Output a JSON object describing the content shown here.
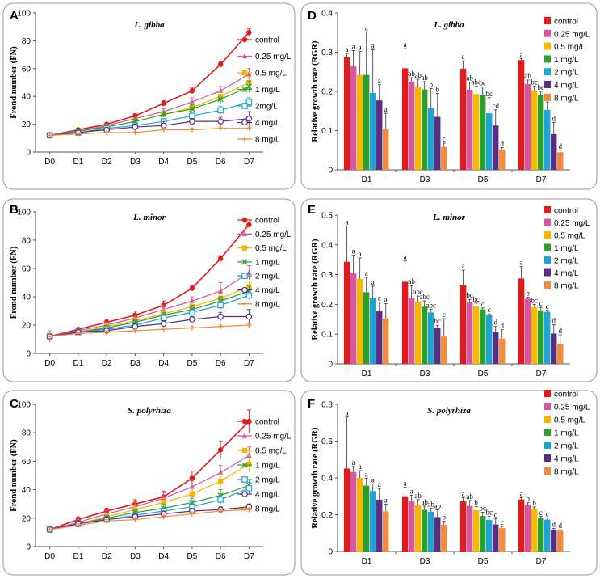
{
  "figure": {
    "legend_labels_line": [
      "control",
      "0.25 mg/L",
      "0.5 mg/L",
      "1 mg/L",
      "2mg/L",
      "4 mg/L",
      "8 mg/L"
    ],
    "legend_labels_line_alt": [
      "control",
      "0.25 mg/L",
      "0.5 mg/L",
      "1 mg/L",
      "2 mg/L",
      "4 mg/L",
      "8 mg/L"
    ],
    "colors": [
      "#e31a1c",
      "#d9559f",
      "#f5b800",
      "#2ca02c",
      "#1fa2d6",
      "#5a2d82",
      "#f28b3c"
    ],
    "markers": [
      "circle",
      "triangle",
      "square",
      "x",
      "open-square",
      "open-circle",
      "plus"
    ]
  },
  "chart_data": [
    {
      "panel": "A",
      "type": "line",
      "title": "L. gibba",
      "xlabel": "",
      "ylabel": "Frond number (FN)",
      "categories": [
        "D0",
        "D1",
        "D2",
        "D3",
        "D4",
        "D5",
        "D6",
        "D7"
      ],
      "ylim": [
        0,
        100
      ],
      "yticks": [
        0,
        20,
        40,
        60,
        80,
        100
      ],
      "series": [
        {
          "name": "control",
          "values": [
            12,
            16,
            20,
            26,
            35,
            44,
            63,
            86
          ],
          "errors": [
            0,
            1,
            1,
            1.5,
            2,
            2,
            2,
            2.5
          ]
        },
        {
          "name": "0.25 mg/L",
          "values": [
            12,
            15,
            19,
            24,
            29,
            36,
            44,
            56
          ],
          "errors": [
            0,
            1,
            1,
            2,
            2,
            3,
            3,
            4
          ]
        },
        {
          "name": "0.5 mg/L",
          "values": [
            12,
            15,
            18,
            22,
            27,
            32,
            40,
            50
          ],
          "errors": [
            0,
            1,
            1,
            2,
            2,
            3,
            3,
            4
          ]
        },
        {
          "name": "1 mg/L",
          "values": [
            12,
            15,
            18,
            22,
            27,
            31,
            38,
            47
          ],
          "errors": [
            0,
            1,
            1,
            2,
            2,
            3,
            3,
            4
          ]
        },
        {
          "name": "2mg/L",
          "values": [
            12,
            14,
            17,
            19,
            22,
            26,
            30,
            36
          ],
          "errors": [
            0,
            1,
            1,
            1.5,
            2,
            2,
            3,
            3
          ]
        },
        {
          "name": "4 mg/L",
          "values": [
            12,
            14,
            16,
            18,
            19,
            22,
            22,
            24
          ],
          "errors": [
            0,
            1,
            1,
            2,
            3,
            2,
            3,
            5
          ]
        },
        {
          "name": "8 mg/L",
          "values": [
            12,
            13,
            14,
            14,
            16,
            16,
            17,
            17
          ],
          "errors": [
            0,
            0.5,
            0.5,
            1,
            1,
            1,
            1,
            1
          ]
        }
      ]
    },
    {
      "panel": "B",
      "type": "line",
      "title": "L. minor",
      "xlabel": "",
      "ylabel": "Frond number (FN)",
      "categories": [
        "D0",
        "D1",
        "D2",
        "D3",
        "D4",
        "D5",
        "D6",
        "D7"
      ],
      "ylim": [
        0,
        100
      ],
      "yticks": [
        0,
        20,
        40,
        60,
        80,
        100
      ],
      "series": [
        {
          "name": "control",
          "values": [
            12,
            17,
            22,
            27,
            34,
            46,
            67,
            91
          ],
          "errors": [
            4,
            1,
            2,
            3,
            3,
            2,
            2,
            2
          ]
        },
        {
          "name": "0.25 mg/L",
          "values": [
            12,
            16,
            20,
            25,
            31,
            37,
            44,
            57
          ],
          "errors": [
            4,
            1,
            2,
            2,
            3,
            3,
            6,
            5
          ]
        },
        {
          "name": "0.5 mg/L",
          "values": [
            12,
            15,
            19,
            23,
            28,
            33,
            39,
            47
          ],
          "errors": [
            4,
            1,
            2,
            2,
            3,
            3,
            3,
            4
          ]
        },
        {
          "name": "1 mg/L",
          "values": [
            12,
            15,
            18,
            22,
            27,
            31,
            37,
            44
          ],
          "errors": [
            4,
            1,
            2,
            2,
            2,
            3,
            3,
            4
          ]
        },
        {
          "name": "2 mg/L",
          "values": [
            12,
            15,
            17,
            20,
            25,
            29,
            34,
            41
          ],
          "errors": [
            4,
            1,
            1,
            2,
            2,
            3,
            3,
            3
          ]
        },
        {
          "name": "4 mg/L",
          "values": [
            12,
            15,
            16,
            19,
            21,
            24,
            26,
            26
          ],
          "errors": [
            4,
            1,
            1,
            2,
            2,
            2,
            3,
            5
          ]
        },
        {
          "name": "8 mg/L",
          "values": [
            12,
            14,
            15,
            16,
            17,
            18,
            19,
            20
          ],
          "errors": [
            4,
            0.5,
            1,
            1,
            1,
            1,
            1,
            1
          ]
        }
      ]
    },
    {
      "panel": "C",
      "type": "line",
      "title": "S. polyrhiza",
      "xlabel": "",
      "ylabel": "Frond number (FN)",
      "categories": [
        "D0",
        "D1",
        "D2",
        "D3",
        "D4",
        "D5",
        "D6",
        "D7"
      ],
      "ylim": [
        0,
        100
      ],
      "yticks": [
        0,
        20,
        40,
        60,
        80,
        100
      ],
      "series": [
        {
          "name": "control",
          "values": [
            12,
            19,
            25,
            30,
            35,
            48,
            68,
            88
          ],
          "errors": [
            0,
            2,
            2,
            3,
            4,
            5,
            6,
            8
          ]
        },
        {
          "name": "0.25 mg/L",
          "values": [
            12,
            17,
            23,
            28,
            34,
            42,
            52,
            64
          ],
          "errors": [
            0,
            2,
            2,
            3,
            4,
            4,
            5,
            6
          ]
        },
        {
          "name": "0.5 mg/L",
          "values": [
            12,
            16,
            21,
            26,
            31,
            37,
            46,
            58
          ],
          "errors": [
            0,
            2,
            2,
            3,
            3,
            4,
            5,
            6
          ]
        },
        {
          "name": "1 mg/L",
          "values": [
            12,
            16,
            20,
            24,
            27,
            31,
            36,
            43
          ],
          "errors": [
            0,
            2,
            2,
            2,
            3,
            3,
            4,
            4
          ]
        },
        {
          "name": "2 mg/L",
          "values": [
            12,
            16,
            19,
            22,
            25,
            28,
            33,
            41
          ],
          "errors": [
            0,
            2,
            2,
            2,
            3,
            3,
            3,
            4
          ]
        },
        {
          "name": "4 mg/L",
          "values": [
            12,
            16,
            19,
            21,
            23,
            25,
            26,
            28
          ],
          "errors": [
            0,
            2,
            2,
            2,
            2,
            2,
            2,
            2
          ]
        },
        {
          "name": "8 mg/L",
          "values": [
            12,
            15,
            18,
            19,
            21,
            23,
            25,
            26
          ],
          "errors": [
            0,
            1,
            1,
            1,
            1,
            1,
            1,
            1
          ]
        }
      ]
    },
    {
      "panel": "D",
      "type": "bar",
      "title": "L. gibba",
      "xlabel": "",
      "ylabel": "Relative growth rate (RGR)",
      "categories": [
        "D1",
        "D3",
        "D5",
        "D7"
      ],
      "ylim": [
        0,
        0.4
      ],
      "yticks": [
        "0",
        "0.1",
        "0.2",
        "0.3",
        "0.4"
      ],
      "series": [
        {
          "name": "control",
          "values": [
            0.287,
            0.259,
            0.258,
            0.28
          ],
          "errors": [
            0.01,
            0.05,
            0.02,
            0.004
          ],
          "letters": [
            "a",
            "a",
            "a",
            "a"
          ]
        },
        {
          "name": "0.25 mg/L",
          "values": [
            0.264,
            0.225,
            0.204,
            0.219
          ],
          "errors": [
            0.04,
            0.01,
            0.02,
            0.01
          ],
          "letters": [
            "a",
            "ab",
            "ab",
            "ab"
          ]
        },
        {
          "name": "0.5 mg/L",
          "values": [
            0.242,
            0.211,
            0.193,
            0.203
          ],
          "errors": [
            0.06,
            0.02,
            0.02,
            0.01
          ],
          "letters": [
            "a",
            "ab",
            "abc",
            "bc"
          ]
        },
        {
          "name": "1 mg/L",
          "values": [
            0.242,
            0.205,
            0.191,
            0.19
          ],
          "errors": [
            0.11,
            0.02,
            0.02,
            0.01
          ],
          "letters": [
            "a",
            "ab",
            "bc",
            "bc"
          ]
        },
        {
          "name": "2 mg/L",
          "values": [
            0.196,
            0.157,
            0.144,
            0.153
          ],
          "errors": [
            0.11,
            0.05,
            0.04,
            0.02
          ],
          "letters": [
            "a",
            "b",
            "bc",
            "c"
          ]
        },
        {
          "name": "4 mg/L",
          "values": [
            0.177,
            0.135,
            0.113,
            0.091
          ],
          "errors": [
            0.04,
            0.06,
            0.04,
            0.03
          ],
          "letters": [
            "a",
            "b",
            "cd",
            "d"
          ]
        },
        {
          "name": "8 mg/L",
          "values": [
            0.104,
            0.058,
            0.052,
            0.045
          ],
          "errors": [
            0.04,
            0.01,
            0.005,
            0.005
          ],
          "letters": [
            "a",
            "c",
            "d",
            "d"
          ]
        }
      ]
    },
    {
      "panel": "E",
      "type": "bar",
      "title": "L. minor",
      "xlabel": "",
      "ylabel": "Relative growth rate (RGR)",
      "categories": [
        "D1",
        "D3",
        "D5",
        "D7"
      ],
      "ylim": [
        0,
        0.5
      ],
      "yticks": [
        "0",
        "0.1",
        "0.2",
        "0.3",
        "0.4",
        "0.5"
      ],
      "series": [
        {
          "name": "control",
          "values": [
            0.343,
            0.276,
            0.265,
            0.287
          ],
          "errors": [
            0.12,
            0.07,
            0.05,
            0.04
          ],
          "letters": [
            "a",
            "a",
            "a",
            "a"
          ]
        },
        {
          "name": "0.25 mg/L",
          "values": [
            0.305,
            0.223,
            0.207,
            0.219
          ],
          "errors": [
            0.06,
            0.04,
            0.01,
            0.005
          ],
          "letters": [
            "a",
            "ab",
            "bc",
            "b"
          ]
        },
        {
          "name": "0.5 mg/L",
          "values": [
            0.286,
            0.208,
            0.194,
            0.19
          ],
          "errors": [
            0.07,
            0.02,
            0.01,
            0.01
          ],
          "letters": [
            "a",
            "abc",
            "bc",
            "bc"
          ]
        },
        {
          "name": "1 mg/L",
          "values": [
            0.241,
            0.192,
            0.183,
            0.18
          ],
          "errors": [
            0.05,
            0.02,
            0.005,
            0.01
          ],
          "letters": [
            "a",
            "abc",
            "c",
            "c"
          ]
        },
        {
          "name": "2 mg/L",
          "values": [
            0.221,
            0.173,
            0.163,
            0.175
          ],
          "errors": [
            0.04,
            0.01,
            0.005,
            0.005
          ],
          "letters": [
            "a",
            "abc",
            "c",
            "c"
          ]
        },
        {
          "name": "4 mg/L",
          "values": [
            0.178,
            0.12,
            0.106,
            0.102
          ],
          "errors": [
            0.03,
            0.01,
            0.02,
            0.03
          ],
          "letters": [
            "a",
            "bc",
            "d",
            "d"
          ]
        },
        {
          "name": "8 mg/L",
          "values": [
            0.153,
            0.092,
            0.085,
            0.068
          ],
          "errors": [
            0.05,
            0.06,
            0.03,
            0.03
          ],
          "letters": [
            "a",
            "c",
            "d",
            "d"
          ]
        }
      ]
    },
    {
      "panel": "F",
      "type": "bar",
      "title": "S. polyrhiza",
      "xlabel": "",
      "ylabel": "Relative growth rate (RGR)",
      "categories": [
        "D1",
        "D3",
        "D5",
        "D7"
      ],
      "ylim": [
        0,
        0.8
      ],
      "yticks": [
        "0",
        "0.2",
        "0.4",
        "0.6",
        "0.8"
      ],
      "series": [
        {
          "name": "control",
          "values": [
            0.451,
            0.3,
            0.273,
            0.283
          ],
          "errors": [
            0.28,
            0.05,
            0.02,
            0.01
          ],
          "letters": [
            "a",
            "a",
            "a",
            "a"
          ]
        },
        {
          "name": "0.25 mg/L",
          "values": [
            0.432,
            0.275,
            0.247,
            0.255
          ],
          "errors": [
            0.03,
            0.03,
            0.03,
            0.01
          ],
          "letters": [
            "a",
            "a",
            "ab",
            "b"
          ]
        },
        {
          "name": "0.5 mg/L",
          "values": [
            0.4,
            0.252,
            0.224,
            0.232
          ],
          "errors": [
            0.04,
            0.03,
            0.02,
            0.01
          ],
          "letters": [
            "a",
            "ab",
            "b",
            "b"
          ]
        },
        {
          "name": "1 mg/L",
          "values": [
            0.358,
            0.226,
            0.193,
            0.18
          ],
          "errors": [
            0.04,
            0.02,
            0.02,
            0.01
          ],
          "letters": [
            "a",
            "ab",
            "bc",
            "c"
          ]
        },
        {
          "name": "2 mg/L",
          "values": [
            0.328,
            0.216,
            0.172,
            0.173
          ],
          "errors": [
            0.04,
            0.02,
            0.02,
            0.01
          ],
          "letters": [
            "a",
            "ab",
            "bc",
            "c"
          ]
        },
        {
          "name": "4 mg/L",
          "values": [
            0.282,
            0.187,
            0.147,
            0.115
          ],
          "errors": [
            0.06,
            0.04,
            0.03,
            0.01
          ],
          "letters": [
            "a",
            "ab",
            "c",
            "d"
          ]
        },
        {
          "name": "8 mg/L",
          "values": [
            0.217,
            0.145,
            0.127,
            0.113
          ],
          "errors": [
            0.04,
            0.02,
            0.01,
            0.005
          ],
          "letters": [
            "a",
            "b",
            "c",
            "d"
          ]
        }
      ]
    }
  ]
}
